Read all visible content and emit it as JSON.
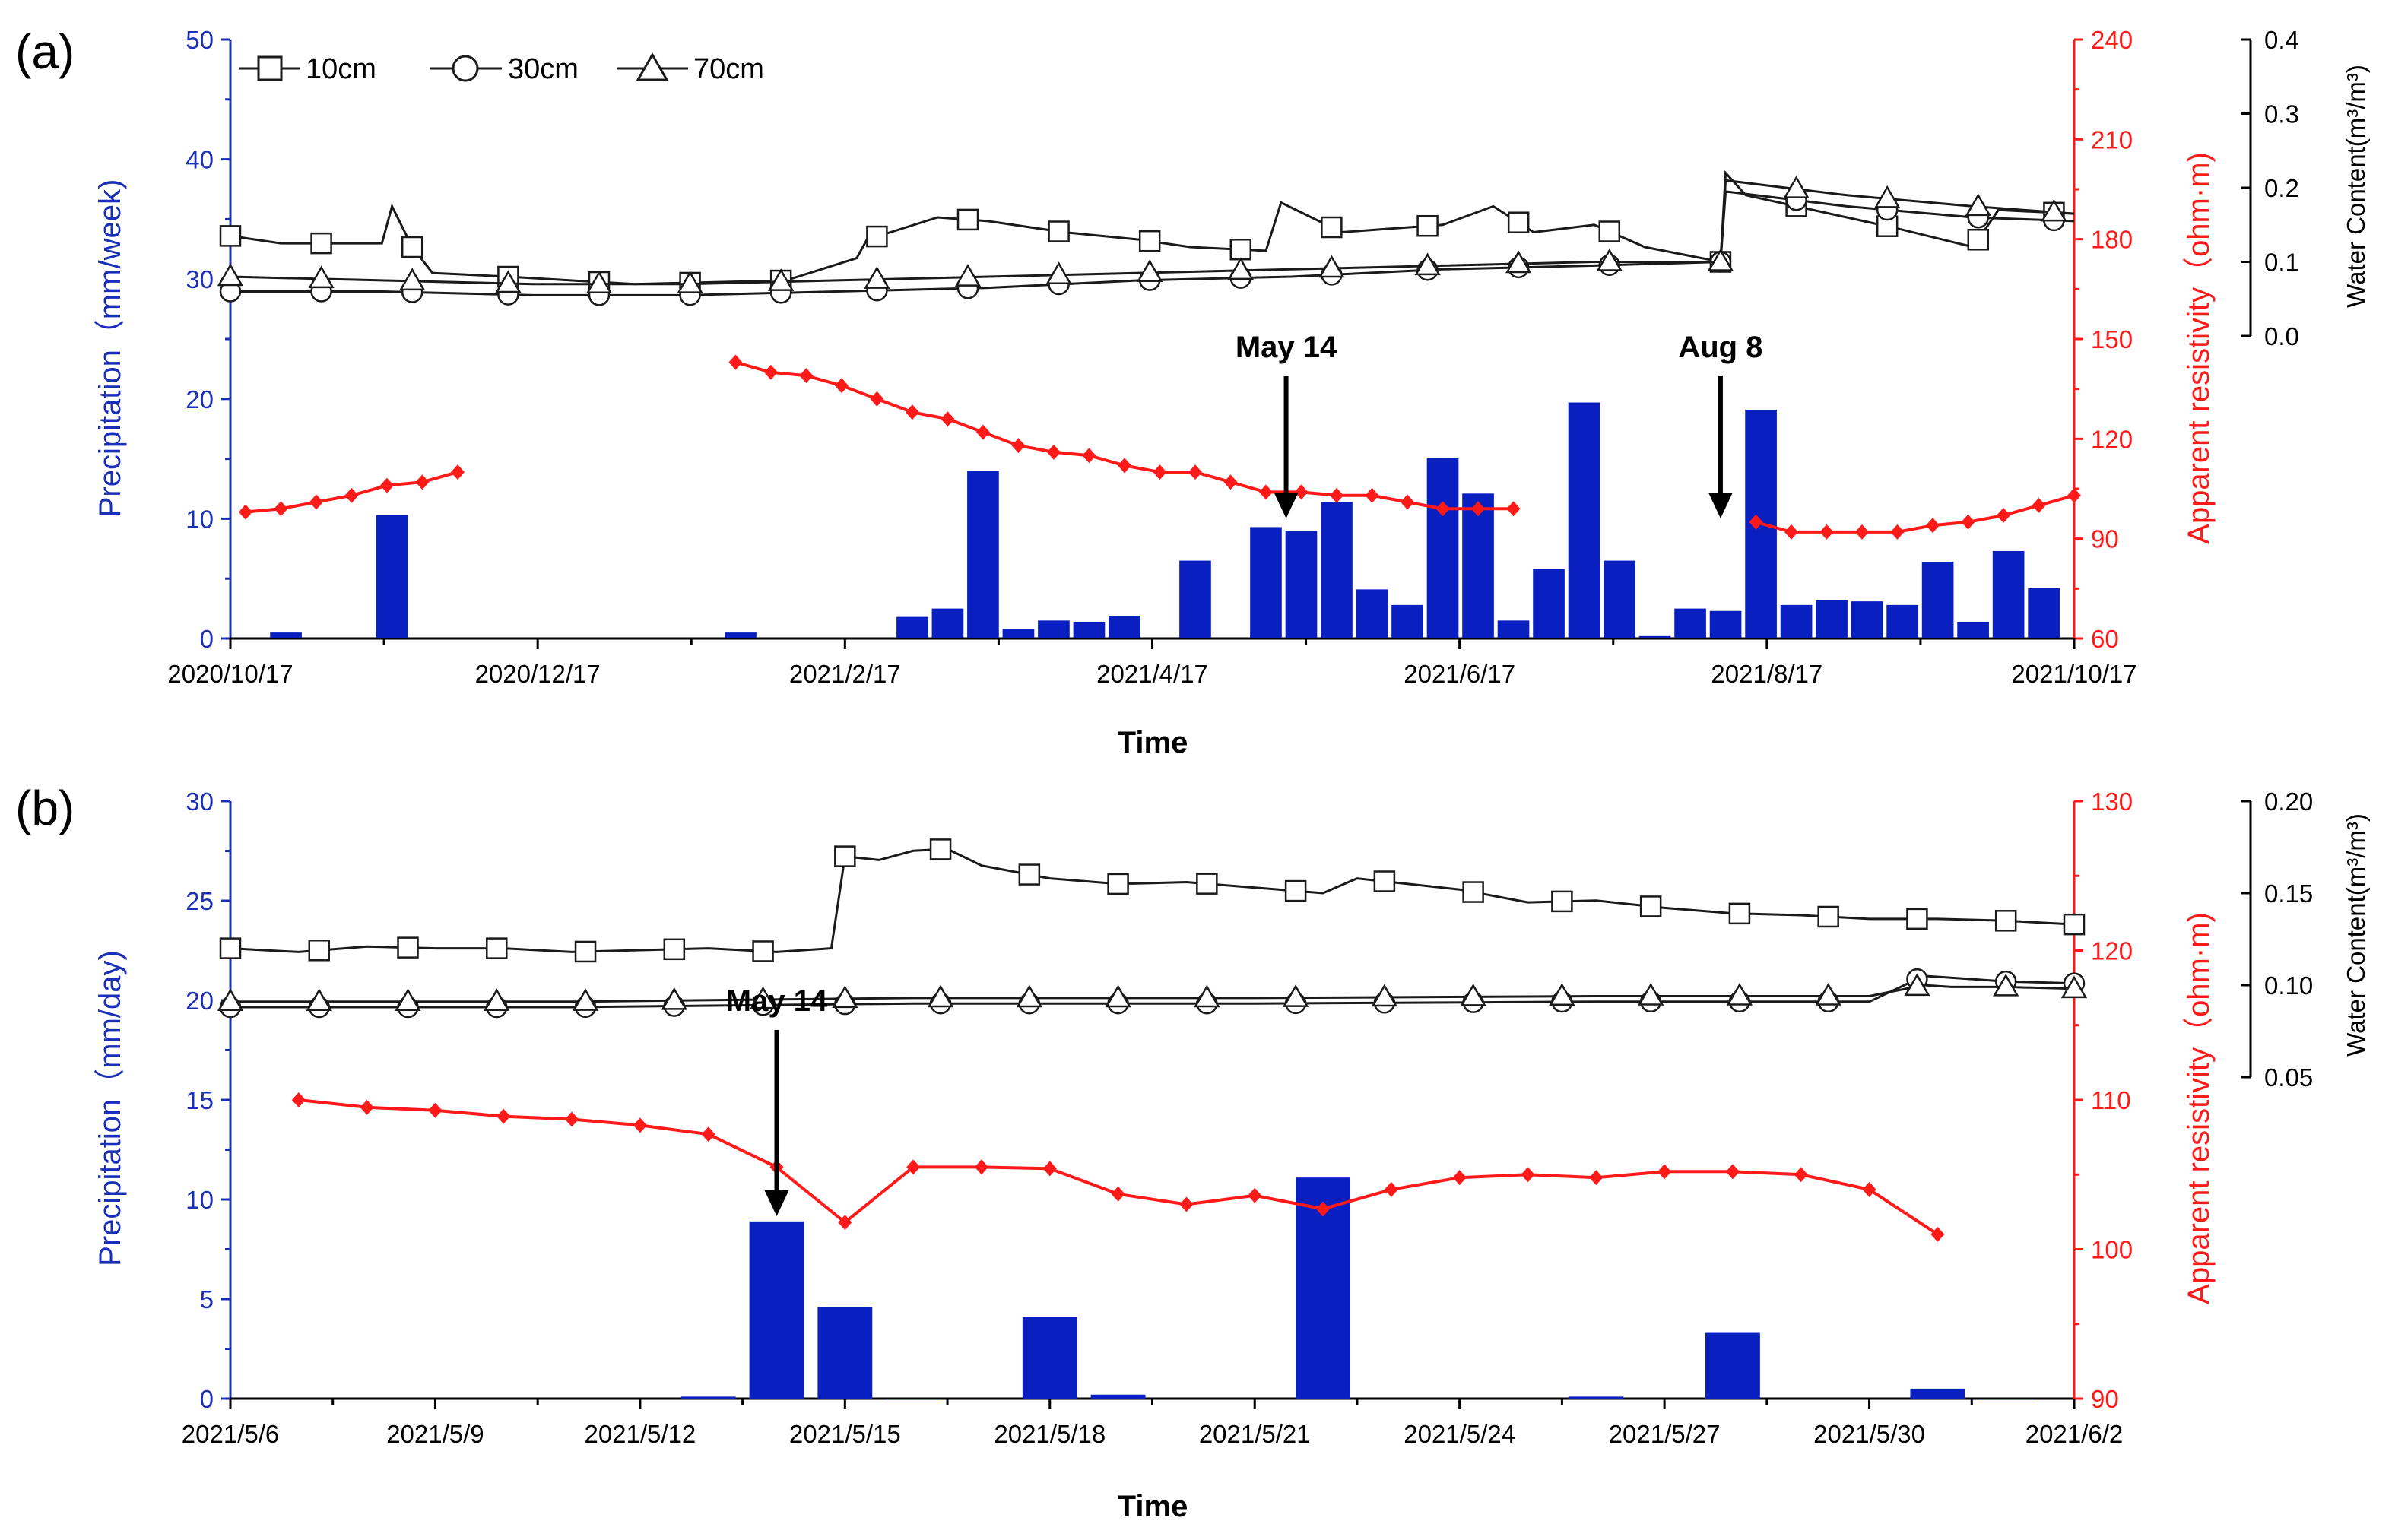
{
  "chart_data": [
    {
      "panel_label": "(a)",
      "type": "bar+line",
      "xlabel": "Time",
      "x_ticks": [
        "2020/10/17",
        "2020/12/17",
        "2021/2/17",
        "2021/4/17",
        "2021/6/17",
        "2021/8/17",
        "2021/10/17"
      ],
      "x_range_days": [
        0,
        365
      ],
      "y_left": {
        "label": "Precipitation（mm/week)",
        "range": [
          0,
          50
        ],
        "ticks": [
          "0",
          "10",
          "20",
          "30",
          "40",
          "50"
        ]
      },
      "y_right": {
        "label": "Apparent resistivity（ohm·m)",
        "range": [
          60,
          240
        ],
        "ticks": [
          "60",
          "90",
          "120",
          "150",
          "180",
          "210",
          "240"
        ]
      },
      "y_right2": {
        "label": "Water Content(m³/m³)",
        "range": [
          0.0,
          0.4
        ],
        "ticks": [
          "0.0",
          "0.1",
          "0.2",
          "0.3",
          "0.4"
        ]
      },
      "legend": [
        "10cm",
        "30cm",
        "70cm"
      ],
      "annotations": [
        {
          "text": "May 14",
          "day": 209
        },
        {
          "text": "Aug 8",
          "day": 295
        }
      ],
      "precipitation": {
        "days": [
          11,
          32,
          101,
          135,
          142,
          149,
          156,
          163,
          170,
          177,
          191,
          205,
          212,
          219,
          226,
          233,
          240,
          247,
          254,
          261,
          268,
          275,
          282,
          289,
          296,
          303,
          310,
          317,
          324,
          331,
          338,
          345,
          352,
          359
        ],
        "values": [
          0.5,
          10.3,
          0.5,
          1.8,
          2.5,
          14.0,
          0.8,
          1.5,
          1.4,
          1.9,
          6.5,
          9.3,
          9.0,
          11.4,
          4.1,
          2.8,
          15.1,
          12.1,
          1.5,
          5.8,
          19.7,
          6.5,
          0.2,
          2.5,
          2.3,
          19.1,
          2.8,
          3.2,
          3.1,
          2.8,
          6.4,
          1.4,
          7.3,
          4.2
        ]
      },
      "resistivity": {
        "segments": [
          {
            "days": [
              3,
              10,
              17,
              24,
              31,
              38,
              45
            ],
            "values": [
              98,
              99,
              101,
              103,
              106,
              107,
              110
            ]
          },
          {
            "days": [
              100,
              107,
              114,
              121,
              128,
              135,
              142,
              149,
              156,
              163,
              170,
              177,
              184,
              191,
              198,
              205,
              212,
              219,
              226,
              233,
              240,
              247,
              254
            ],
            "values": [
              143,
              140,
              139,
              136,
              132,
              128,
              126,
              122,
              118,
              116,
              115,
              112,
              110,
              110,
              107,
              104,
              104,
              103,
              103,
              101,
              99,
              99,
              99
            ]
          },
          {
            "days": [
              302,
              309,
              316,
              323,
              330,
              337,
              344,
              351,
              358,
              365
            ],
            "values": [
              95,
              92,
              92,
              92,
              92,
              94,
              95,
              97,
              100,
              103
            ]
          }
        ]
      },
      "water_content": {
        "10cm": {
          "days": [
            0,
            10,
            30,
            32,
            36,
            40,
            55,
            80,
            110,
            124,
            126,
            140,
            150,
            165,
            180,
            190,
            205,
            208,
            220,
            240,
            250,
            258,
            270,
            280,
            295,
            296,
            300,
            320,
            330,
            345,
            350,
            365
          ],
          "values": [
            0.135,
            0.125,
            0.125,
            0.175,
            0.12,
            0.085,
            0.08,
            0.07,
            0.075,
            0.105,
            0.13,
            0.16,
            0.155,
            0.14,
            0.13,
            0.12,
            0.115,
            0.18,
            0.14,
            0.15,
            0.175,
            0.14,
            0.15,
            0.12,
            0.1,
            0.22,
            0.19,
            0.16,
            0.145,
            0.12,
            0.17,
            0.165
          ]
        },
        "30cm": {
          "days": [
            0,
            30,
            60,
            90,
            120,
            150,
            180,
            210,
            240,
            270,
            295,
            296,
            320,
            345,
            365
          ],
          "values": [
            0.06,
            0.06,
            0.055,
            0.055,
            0.06,
            0.065,
            0.075,
            0.08,
            0.09,
            0.095,
            0.1,
            0.195,
            0.175,
            0.16,
            0.155
          ]
        },
        "70cm": {
          "days": [
            0,
            30,
            60,
            90,
            120,
            150,
            180,
            210,
            240,
            270,
            295,
            296,
            320,
            345,
            365
          ],
          "values": [
            0.08,
            0.075,
            0.07,
            0.07,
            0.075,
            0.08,
            0.085,
            0.09,
            0.095,
            0.1,
            0.1,
            0.21,
            0.19,
            0.175,
            0.165
          ]
        }
      },
      "wc_markers_days": [
        0,
        18,
        36,
        55,
        73,
        91,
        109,
        128,
        146,
        164,
        182,
        200,
        218,
        237,
        255,
        273,
        295,
        310,
        328,
        346,
        361
      ]
    },
    {
      "panel_label": "(b)",
      "type": "bar+line",
      "xlabel": "Time",
      "x_ticks": [
        "2021/5/6",
        "2021/5/9",
        "2021/5/12",
        "2021/5/15",
        "2021/5/18",
        "2021/5/21",
        "2021/5/24",
        "2021/5/27",
        "2021/5/30",
        "2021/6/2"
      ],
      "x_range_days": [
        0,
        27
      ],
      "y_left": {
        "label": "Precipitation（mm/day)",
        "range": [
          0,
          30
        ],
        "ticks": [
          "0",
          "5",
          "10",
          "15",
          "20",
          "25",
          "30"
        ]
      },
      "y_right": {
        "label": "Apparent resistivity（ohm·m)",
        "range": [
          90,
          130
        ],
        "ticks": [
          "90",
          "100",
          "110",
          "120",
          "130"
        ]
      },
      "y_right2": {
        "label": "Water Content(m³/m³)",
        "range": [
          0.05,
          0.2
        ],
        "ticks": [
          "0.05",
          "0.10",
          "0.15",
          "0.20"
        ]
      },
      "annotations": [
        {
          "text": "May 14",
          "day": 8
        }
      ],
      "precipitation": {
        "days": [
          7,
          8,
          9,
          10,
          12,
          13,
          16,
          20,
          22,
          25,
          26
        ],
        "values": [
          0.1,
          8.9,
          4.6,
          0.0,
          4.1,
          0.2,
          11.1,
          0.1,
          3.3,
          0.5,
          0.0
        ]
      },
      "resistivity": {
        "segments": [
          {
            "days": [
              1,
              2,
              3,
              4,
              5,
              6,
              7,
              8,
              9,
              10,
              11,
              12,
              13,
              14,
              15,
              16,
              17,
              18,
              19,
              20,
              21,
              22,
              23,
              24,
              25
            ],
            "values": [
              110,
              109.5,
              109.3,
              108.9,
              108.7,
              108.3,
              107.7,
              105.5,
              101.8,
              105.5,
              105.5,
              105.4,
              103.7,
              103,
              103.6,
              102.7,
              104,
              104.8,
              105,
              104.8,
              105.2,
              105.2,
              105,
              104,
              101
            ]
          }
        ]
      },
      "water_content": {
        "10cm": {
          "days": [
            0,
            1,
            2,
            3,
            4,
            5,
            6,
            7,
            8,
            8.8,
            9,
            9.5,
            10,
            10.5,
            11,
            12,
            13,
            14,
            15,
            16,
            16.5,
            17,
            18,
            19,
            20,
            21,
            22,
            23,
            24,
            25,
            26,
            27
          ],
          "values": [
            0.12,
            0.118,
            0.121,
            0.12,
            0.12,
            0.118,
            0.119,
            0.12,
            0.118,
            0.12,
            0.17,
            0.168,
            0.173,
            0.174,
            0.165,
            0.158,
            0.155,
            0.156,
            0.153,
            0.15,
            0.158,
            0.156,
            0.152,
            0.145,
            0.146,
            0.142,
            0.139,
            0.138,
            0.136,
            0.136,
            0.135,
            0.133
          ]
        },
        "30cm": {
          "days": [
            0,
            5,
            10,
            15,
            20,
            24,
            24.8,
            25.2,
            26,
            27
          ],
          "values": [
            0.088,
            0.088,
            0.09,
            0.09,
            0.091,
            0.091,
            0.105,
            0.104,
            0.102,
            0.101
          ]
        },
        "70cm": {
          "days": [
            0,
            5,
            10,
            15,
            20,
            24,
            24.8,
            25.2,
            26,
            27
          ],
          "values": [
            0.091,
            0.091,
            0.093,
            0.093,
            0.094,
            0.094,
            0.1,
            0.099,
            0.099,
            0.098
          ]
        }
      },
      "wc_markers_days": [
        0,
        1.3,
        2.6,
        3.9,
        5.2,
        6.5,
        7.8,
        9,
        10.4,
        11.7,
        13,
        14.3,
        15.6,
        16.9,
        18.2,
        19.5,
        20.8,
        22.1,
        23.4,
        24.7,
        26,
        27
      ]
    }
  ],
  "colors": {
    "precip": "#0a1fbf",
    "resistivity": "#ff1a1a",
    "axis_blue": "#1a2fb8",
    "axis_red": "#ff1a1a",
    "wc": "#1a1a1a"
  }
}
